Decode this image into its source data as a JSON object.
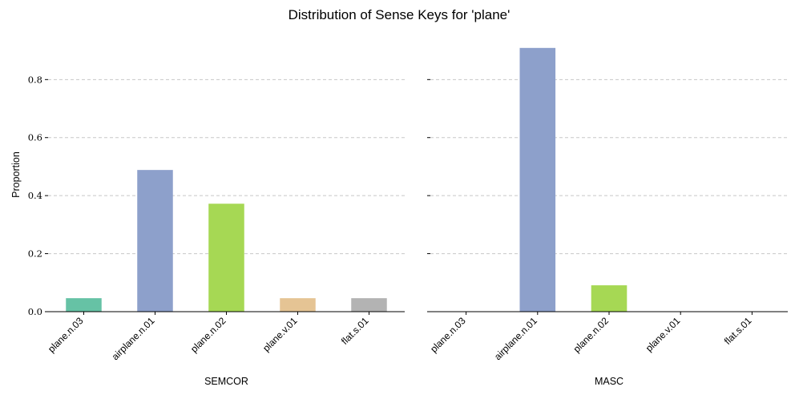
{
  "chart_data": {
    "title": "Distribution of Sense Keys for 'plane'",
    "ylabel": "Proportion",
    "type": "bar",
    "panels": [
      {
        "type": "bar",
        "xlabel": "SEMCOR",
        "categories": [
          "plane.n.03",
          "airplane.n.01",
          "plane.n.02",
          "plane.v.01",
          "flat.s.01"
        ],
        "values": [
          0.0465,
          0.4884,
          0.3721,
          0.0465,
          0.0465
        ],
        "ylim": [
          0,
          0.95
        ],
        "yticks": [
          "0.0",
          "0.2",
          "0.4",
          "0.6",
          "0.8"
        ],
        "ytick_values": [
          0,
          0.2,
          0.4,
          0.6,
          0.8
        ],
        "grid": true,
        "show_y_tick_labels": true
      },
      {
        "type": "bar",
        "xlabel": "MASC",
        "categories": [
          "plane.n.03",
          "airplane.n.01",
          "plane.n.02",
          "plane.v.01",
          "flat.s.01"
        ],
        "values": [
          0,
          0.9091,
          0.0909,
          0,
          0
        ],
        "ylim": [
          0,
          0.95
        ],
        "yticks": [
          "0.0",
          "0.2",
          "0.4",
          "0.6",
          "0.8"
        ],
        "ytick_values": [
          0,
          0.2,
          0.4,
          0.6,
          0.8
        ],
        "grid": true,
        "show_y_tick_labels": false
      }
    ],
    "colors": [
      "#66c2a5",
      "#8da0cb",
      "#a6d854",
      "#e5c494",
      "#b3b3b3"
    ]
  }
}
